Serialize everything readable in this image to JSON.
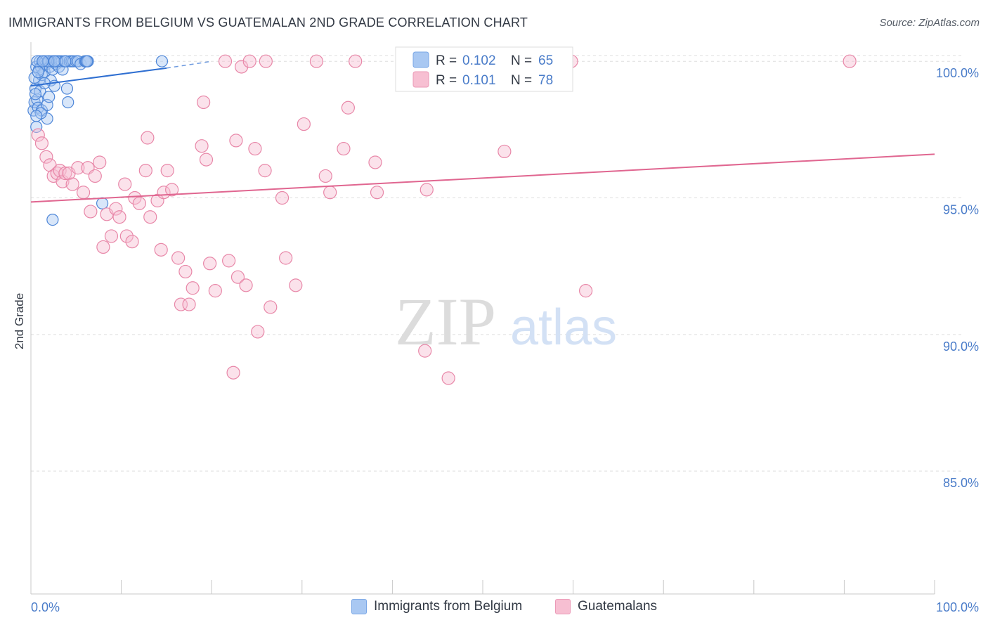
{
  "header": {
    "title": "IMMIGRANTS FROM BELGIUM VS GUATEMALAN 2ND GRADE CORRELATION CHART",
    "source": "Source: ZipAtlas.com"
  },
  "watermark": {
    "zip": "ZIP",
    "atlas": "atlas"
  },
  "colors": {
    "blue_fill": "#a9c8f2",
    "blue_stroke": "#4d86d8",
    "blue_line": "#2f6fd1",
    "pink_fill": "#f7bfd2",
    "pink_stroke": "#e887a8",
    "pink_line": "#e06690",
    "axis_text": "#4a7cc9",
    "grid": "#dddddd"
  },
  "chart_data": {
    "type": "scatter",
    "title": "IMMIGRANTS FROM BELGIUM VS GUATEMALAN 2ND GRADE CORRELATION CHART",
    "xlabel": "",
    "ylabel": "2nd Grade",
    "xlim": [
      0,
      100
    ],
    "ylim": [
      80.5,
      100.7
    ],
    "x_tick_labels": [
      "0.0%",
      "100.0%"
    ],
    "y_ticks": [
      {
        "value": 100,
        "label": "100.0%"
      },
      {
        "value": 95,
        "label": "95.0%"
      },
      {
        "value": 90,
        "label": "90.0%"
      },
      {
        "value": 85,
        "label": "85.0%"
      }
    ],
    "legend_box": [
      {
        "r_label": "R =",
        "r_value": "0.102",
        "n_label": "N =",
        "n_value": "65"
      },
      {
        "r_label": "R =",
        "r_value": "0.101",
        "n_label": "N =",
        "n_value": "78"
      }
    ],
    "series": [
      {
        "name": "Immigrants from Belgium",
        "color": "blue",
        "trend": {
          "x0": 0,
          "y0": 99.1,
          "x1": 15,
          "y1": 99.75,
          "dash_x1": 20,
          "dash_y1": 100.0
        },
        "points": [
          [
            0.3,
            98.2
          ],
          [
            0.4,
            98.5
          ],
          [
            0.5,
            99.0
          ],
          [
            0.6,
            99.8
          ],
          [
            0.6,
            97.6
          ],
          [
            0.7,
            98.6
          ],
          [
            0.8,
            98.3
          ],
          [
            0.9,
            99.3
          ],
          [
            1.0,
            98.9
          ],
          [
            1.0,
            100.0
          ],
          [
            1.1,
            99.8
          ],
          [
            1.2,
            99.5
          ],
          [
            1.2,
            98.2
          ],
          [
            1.3,
            99.9
          ],
          [
            1.4,
            100.0
          ],
          [
            1.5,
            99.6
          ],
          [
            1.6,
            100.0
          ],
          [
            1.7,
            99.9
          ],
          [
            1.8,
            98.4
          ],
          [
            1.8,
            97.9
          ],
          [
            2.0,
            100.0
          ],
          [
            2.0,
            98.7
          ],
          [
            2.1,
            99.8
          ],
          [
            2.2,
            99.3
          ],
          [
            2.3,
            100.0
          ],
          [
            2.4,
            99.7
          ],
          [
            2.5,
            100.0
          ],
          [
            2.6,
            99.1
          ],
          [
            2.7,
            100.0
          ],
          [
            2.8,
            99.9
          ],
          [
            3.0,
            100.0
          ],
          [
            3.1,
            99.8
          ],
          [
            3.2,
            100.0
          ],
          [
            3.4,
            100.0
          ],
          [
            3.5,
            99.7
          ],
          [
            3.7,
            100.0
          ],
          [
            3.9,
            100.0
          ],
          [
            4.0,
            99.0
          ],
          [
            4.1,
            98.5
          ],
          [
            4.3,
            100.0
          ],
          [
            4.5,
            100.0
          ],
          [
            4.7,
            100.0
          ],
          [
            5.0,
            100.0
          ],
          [
            5.2,
            100.0
          ],
          [
            5.5,
            99.9
          ],
          [
            6.0,
            100.0
          ],
          [
            6.1,
            100.0
          ],
          [
            6.3,
            100.0
          ],
          [
            2.4,
            94.2
          ],
          [
            7.9,
            94.8
          ],
          [
            14.5,
            100.0
          ],
          [
            0.5,
            98.8
          ],
          [
            0.9,
            99.7
          ],
          [
            1.5,
            99.2
          ],
          [
            2.9,
            100.0
          ],
          [
            0.4,
            99.4
          ],
          [
            1.1,
            98.1
          ],
          [
            3.8,
            100.0
          ],
          [
            6.2,
            100.0
          ],
          [
            0.7,
            100.0
          ],
          [
            1.9,
            100.0
          ],
          [
            2.6,
            100.0
          ],
          [
            0.8,
            99.6
          ],
          [
            1.3,
            100.0
          ],
          [
            0.6,
            98.0
          ]
        ]
      },
      {
        "name": "Guatemalans",
        "color": "pink",
        "trend": {
          "x0": 0,
          "y0": 94.85,
          "x1": 100,
          "y1": 96.6
        },
        "points": [
          [
            0.8,
            97.3
          ],
          [
            1.2,
            97.0
          ],
          [
            1.7,
            96.5
          ],
          [
            2.1,
            96.2
          ],
          [
            2.5,
            95.8
          ],
          [
            2.9,
            95.9
          ],
          [
            3.2,
            96.0
          ],
          [
            3.5,
            95.6
          ],
          [
            3.8,
            95.9
          ],
          [
            4.2,
            95.9
          ],
          [
            4.6,
            95.5
          ],
          [
            5.2,
            96.1
          ],
          [
            5.8,
            95.2
          ],
          [
            6.3,
            96.1
          ],
          [
            6.6,
            94.5
          ],
          [
            7.1,
            95.8
          ],
          [
            7.6,
            96.3
          ],
          [
            8.0,
            93.2
          ],
          [
            8.4,
            94.4
          ],
          [
            8.9,
            93.6
          ],
          [
            9.4,
            94.6
          ],
          [
            9.8,
            94.3
          ],
          [
            10.4,
            95.5
          ],
          [
            10.6,
            93.6
          ],
          [
            11.2,
            93.4
          ],
          [
            11.5,
            95.0
          ],
          [
            12.0,
            94.8
          ],
          [
            12.7,
            96.0
          ],
          [
            12.9,
            97.2
          ],
          [
            13.2,
            94.3
          ],
          [
            14.0,
            94.9
          ],
          [
            14.4,
            93.1
          ],
          [
            14.7,
            95.2
          ],
          [
            15.1,
            96.0
          ],
          [
            15.6,
            95.3
          ],
          [
            16.3,
            92.8
          ],
          [
            16.6,
            91.1
          ],
          [
            17.1,
            92.3
          ],
          [
            17.5,
            91.1
          ],
          [
            17.9,
            91.7
          ],
          [
            18.9,
            96.9
          ],
          [
            19.1,
            98.5
          ],
          [
            19.4,
            96.4
          ],
          [
            19.8,
            92.6
          ],
          [
            20.4,
            91.6
          ],
          [
            21.9,
            92.7
          ],
          [
            22.4,
            88.6
          ],
          [
            22.7,
            97.1
          ],
          [
            22.9,
            92.1
          ],
          [
            23.3,
            99.8
          ],
          [
            23.8,
            91.8
          ],
          [
            24.2,
            100.0
          ],
          [
            24.8,
            96.8
          ],
          [
            25.1,
            90.1
          ],
          [
            25.9,
            96.0
          ],
          [
            26.5,
            91.0
          ],
          [
            27.8,
            95.0
          ],
          [
            28.2,
            92.8
          ],
          [
            29.3,
            91.8
          ],
          [
            30.2,
            97.7
          ],
          [
            31.6,
            100.0
          ],
          [
            32.6,
            95.8
          ],
          [
            33.1,
            95.2
          ],
          [
            34.6,
            96.8
          ],
          [
            35.1,
            98.3
          ],
          [
            35.9,
            100.0
          ],
          [
            38.1,
            96.3
          ],
          [
            38.3,
            95.2
          ],
          [
            43.8,
            95.3
          ],
          [
            43.6,
            89.4
          ],
          [
            46.2,
            88.4
          ],
          [
            52.4,
            96.7
          ],
          [
            58.1,
            100.0
          ],
          [
            59.8,
            100.0
          ],
          [
            61.4,
            91.6
          ],
          [
            90.6,
            100.0
          ],
          [
            21.5,
            100.0
          ],
          [
            26.0,
            100.0
          ]
        ]
      }
    ]
  }
}
